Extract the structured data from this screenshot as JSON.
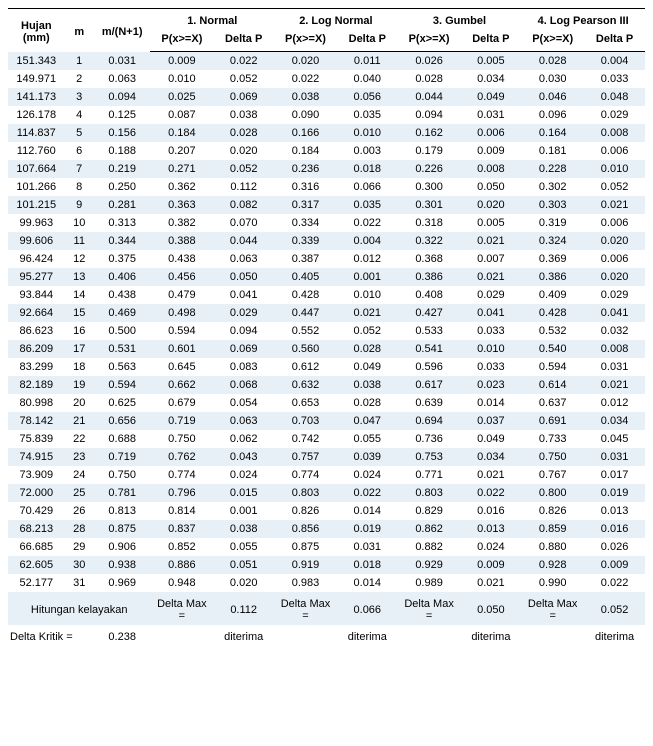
{
  "headers": {
    "hujan": "Hujan (mm)",
    "m": "m",
    "mn": "m/(N+1)",
    "groups": [
      {
        "title": "1. Normal",
        "p": "P(x>=X)",
        "d": "Delta P"
      },
      {
        "title": "2. Log Normal",
        "p": "P(x>=X)",
        "d": "Delta P"
      },
      {
        "title": "3. Gumbel",
        "p": "P(x>=X)",
        "d": "Delta P"
      },
      {
        "title": "4. Log Pearson III",
        "p": "P(x>=X)",
        "d": "Delta P"
      }
    ]
  },
  "rows": [
    {
      "h": "151.343",
      "m": "1",
      "mn": "0.031",
      "p1": "0.009",
      "d1": "0.022",
      "p2": "0.020",
      "d2": "0.011",
      "p3": "0.026",
      "d3": "0.005",
      "p4": "0.028",
      "d4": "0.004"
    },
    {
      "h": "149.971",
      "m": "2",
      "mn": "0.063",
      "p1": "0.010",
      "d1": "0.052",
      "p2": "0.022",
      "d2": "0.040",
      "p3": "0.028",
      "d3": "0.034",
      "p4": "0.030",
      "d4": "0.033"
    },
    {
      "h": "141.173",
      "m": "3",
      "mn": "0.094",
      "p1": "0.025",
      "d1": "0.069",
      "p2": "0.038",
      "d2": "0.056",
      "p3": "0.044",
      "d3": "0.049",
      "p4": "0.046",
      "d4": "0.048"
    },
    {
      "h": "126.178",
      "m": "4",
      "mn": "0.125",
      "p1": "0.087",
      "d1": "0.038",
      "p2": "0.090",
      "d2": "0.035",
      "p3": "0.094",
      "d3": "0.031",
      "p4": "0.096",
      "d4": "0.029"
    },
    {
      "h": "114.837",
      "m": "5",
      "mn": "0.156",
      "p1": "0.184",
      "d1": "0.028",
      "p2": "0.166",
      "d2": "0.010",
      "p3": "0.162",
      "d3": "0.006",
      "p4": "0.164",
      "d4": "0.008"
    },
    {
      "h": "112.760",
      "m": "6",
      "mn": "0.188",
      "p1": "0.207",
      "d1": "0.020",
      "p2": "0.184",
      "d2": "0.003",
      "p3": "0.179",
      "d3": "0.009",
      "p4": "0.181",
      "d4": "0.006"
    },
    {
      "h": "107.664",
      "m": "7",
      "mn": "0.219",
      "p1": "0.271",
      "d1": "0.052",
      "p2": "0.236",
      "d2": "0.018",
      "p3": "0.226",
      "d3": "0.008",
      "p4": "0.228",
      "d4": "0.010"
    },
    {
      "h": "101.266",
      "m": "8",
      "mn": "0.250",
      "p1": "0.362",
      "d1": "0.112",
      "p2": "0.316",
      "d2": "0.066",
      "p3": "0.300",
      "d3": "0.050",
      "p4": "0.302",
      "d4": "0.052"
    },
    {
      "h": "101.215",
      "m": "9",
      "mn": "0.281",
      "p1": "0.363",
      "d1": "0.082",
      "p2": "0.317",
      "d2": "0.035",
      "p3": "0.301",
      "d3": "0.020",
      "p4": "0.303",
      "d4": "0.021"
    },
    {
      "h": "99.963",
      "m": "10",
      "mn": "0.313",
      "p1": "0.382",
      "d1": "0.070",
      "p2": "0.334",
      "d2": "0.022",
      "p3": "0.318",
      "d3": "0.005",
      "p4": "0.319",
      "d4": "0.006"
    },
    {
      "h": "99.606",
      "m": "11",
      "mn": "0.344",
      "p1": "0.388",
      "d1": "0.044",
      "p2": "0.339",
      "d2": "0.004",
      "p3": "0.322",
      "d3": "0.021",
      "p4": "0.324",
      "d4": "0.020"
    },
    {
      "h": "96.424",
      "m": "12",
      "mn": "0.375",
      "p1": "0.438",
      "d1": "0.063",
      "p2": "0.387",
      "d2": "0.012",
      "p3": "0.368",
      "d3": "0.007",
      "p4": "0.369",
      "d4": "0.006"
    },
    {
      "h": "95.277",
      "m": "13",
      "mn": "0.406",
      "p1": "0.456",
      "d1": "0.050",
      "p2": "0.405",
      "d2": "0.001",
      "p3": "0.386",
      "d3": "0.021",
      "p4": "0.386",
      "d4": "0.020"
    },
    {
      "h": "93.844",
      "m": "14",
      "mn": "0.438",
      "p1": "0.479",
      "d1": "0.041",
      "p2": "0.428",
      "d2": "0.010",
      "p3": "0.408",
      "d3": "0.029",
      "p4": "0.409",
      "d4": "0.029"
    },
    {
      "h": "92.664",
      "m": "15",
      "mn": "0.469",
      "p1": "0.498",
      "d1": "0.029",
      "p2": "0.447",
      "d2": "0.021",
      "p3": "0.427",
      "d3": "0.041",
      "p4": "0.428",
      "d4": "0.041"
    },
    {
      "h": "86.623",
      "m": "16",
      "mn": "0.500",
      "p1": "0.594",
      "d1": "0.094",
      "p2": "0.552",
      "d2": "0.052",
      "p3": "0.533",
      "d3": "0.033",
      "p4": "0.532",
      "d4": "0.032"
    },
    {
      "h": "86.209",
      "m": "17",
      "mn": "0.531",
      "p1": "0.601",
      "d1": "0.069",
      "p2": "0.560",
      "d2": "0.028",
      "p3": "0.541",
      "d3": "0.010",
      "p4": "0.540",
      "d4": "0.008"
    },
    {
      "h": "83.299",
      "m": "18",
      "mn": "0.563",
      "p1": "0.645",
      "d1": "0.083",
      "p2": "0.612",
      "d2": "0.049",
      "p3": "0.596",
      "d3": "0.033",
      "p4": "0.594",
      "d4": "0.031"
    },
    {
      "h": "82.189",
      "m": "19",
      "mn": "0.594",
      "p1": "0.662",
      "d1": "0.068",
      "p2": "0.632",
      "d2": "0.038",
      "p3": "0.617",
      "d3": "0.023",
      "p4": "0.614",
      "d4": "0.021"
    },
    {
      "h": "80.998",
      "m": "20",
      "mn": "0.625",
      "p1": "0.679",
      "d1": "0.054",
      "p2": "0.653",
      "d2": "0.028",
      "p3": "0.639",
      "d3": "0.014",
      "p4": "0.637",
      "d4": "0.012"
    },
    {
      "h": "78.142",
      "m": "21",
      "mn": "0.656",
      "p1": "0.719",
      "d1": "0.063",
      "p2": "0.703",
      "d2": "0.047",
      "p3": "0.694",
      "d3": "0.037",
      "p4": "0.691",
      "d4": "0.034"
    },
    {
      "h": "75.839",
      "m": "22",
      "mn": "0.688",
      "p1": "0.750",
      "d1": "0.062",
      "p2": "0.742",
      "d2": "0.055",
      "p3": "0.736",
      "d3": "0.049",
      "p4": "0.733",
      "d4": "0.045"
    },
    {
      "h": "74.915",
      "m": "23",
      "mn": "0.719",
      "p1": "0.762",
      "d1": "0.043",
      "p2": "0.757",
      "d2": "0.039",
      "p3": "0.753",
      "d3": "0.034",
      "p4": "0.750",
      "d4": "0.031"
    },
    {
      "h": "73.909",
      "m": "24",
      "mn": "0.750",
      "p1": "0.774",
      "d1": "0.024",
      "p2": "0.774",
      "d2": "0.024",
      "p3": "0.771",
      "d3": "0.021",
      "p4": "0.767",
      "d4": "0.017"
    },
    {
      "h": "72.000",
      "m": "25",
      "mn": "0.781",
      "p1": "0.796",
      "d1": "0.015",
      "p2": "0.803",
      "d2": "0.022",
      "p3": "0.803",
      "d3": "0.022",
      "p4": "0.800",
      "d4": "0.019"
    },
    {
      "h": "70.429",
      "m": "26",
      "mn": "0.813",
      "p1": "0.814",
      "d1": "0.001",
      "p2": "0.826",
      "d2": "0.014",
      "p3": "0.829",
      "d3": "0.016",
      "p4": "0.826",
      "d4": "0.013"
    },
    {
      "h": "68.213",
      "m": "28",
      "mn": "0.875",
      "p1": "0.837",
      "d1": "0.038",
      "p2": "0.856",
      "d2": "0.019",
      "p3": "0.862",
      "d3": "0.013",
      "p4": "0.859",
      "d4": "0.016"
    },
    {
      "h": "66.685",
      "m": "29",
      "mn": "0.906",
      "p1": "0.852",
      "d1": "0.055",
      "p2": "0.875",
      "d2": "0.031",
      "p3": "0.882",
      "d3": "0.024",
      "p4": "0.880",
      "d4": "0.026"
    },
    {
      "h": "62.605",
      "m": "30",
      "mn": "0.938",
      "p1": "0.886",
      "d1": "0.051",
      "p2": "0.919",
      "d2": "0.018",
      "p3": "0.929",
      "d3": "0.009",
      "p4": "0.928",
      "d4": "0.009"
    },
    {
      "h": "52.177",
      "m": "31",
      "mn": "0.969",
      "p1": "0.948",
      "d1": "0.020",
      "p2": "0.983",
      "d2": "0.014",
      "p3": "0.989",
      "d3": "0.021",
      "p4": "0.990",
      "d4": "0.022"
    }
  ],
  "summary": {
    "hitungan_label": "Hitungan kelayakan",
    "delta_max_label": "Delta Max =",
    "delta_kritik_label": "Delta Kritik =",
    "delta_kritik_value": "0.238",
    "dm1": "0.112",
    "dm2": "0.066",
    "dm3": "0.050",
    "dm4": "0.052",
    "diterima": "diterima"
  },
  "colors": {
    "row_bg": "#e8f0f7"
  }
}
